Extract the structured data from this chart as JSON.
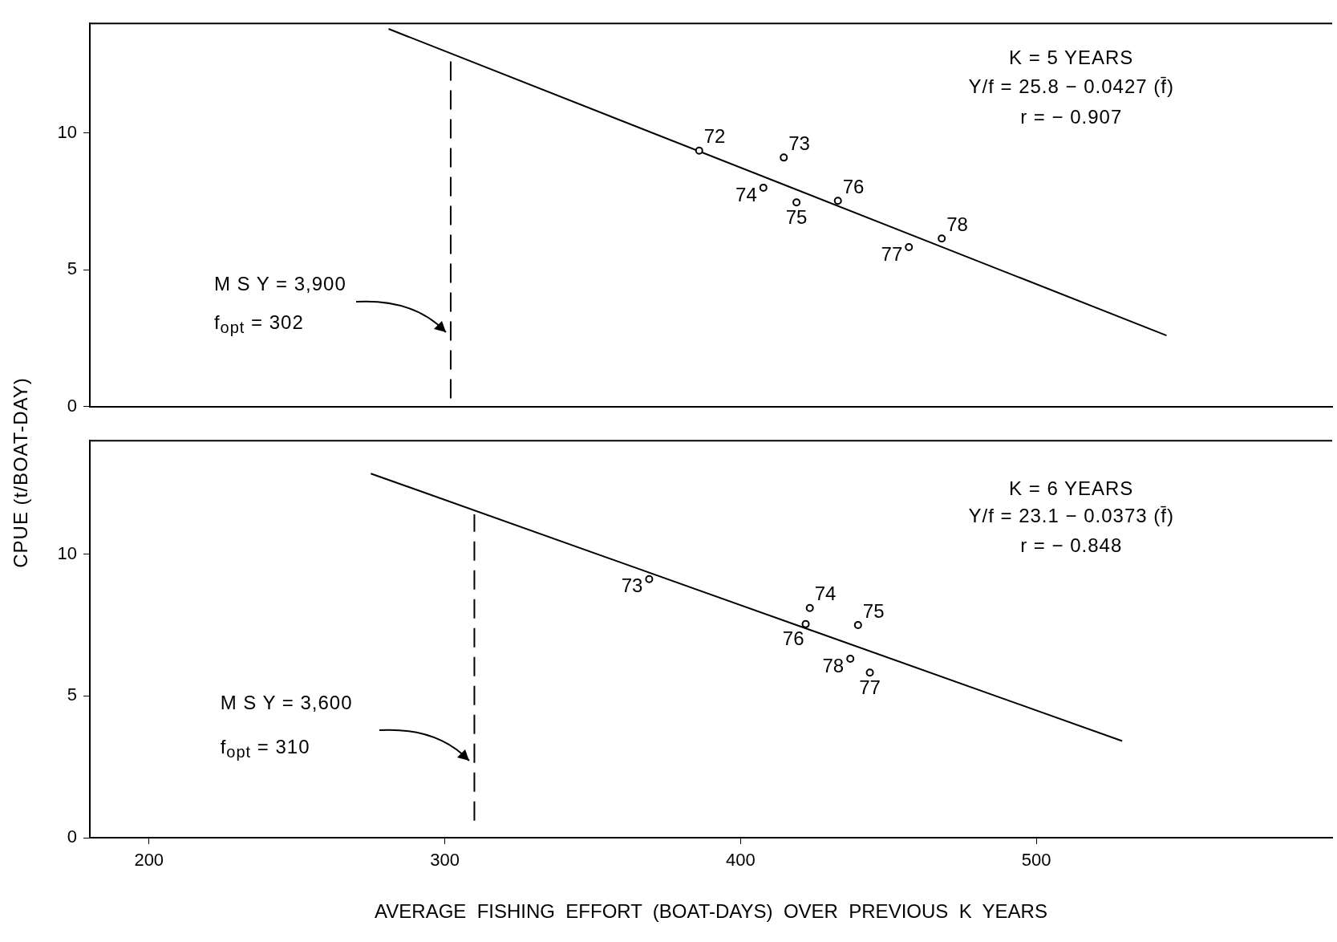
{
  "chart_data": [
    {
      "type": "scatter",
      "xlim": [
        180,
        600
      ],
      "ylim": [
        0,
        14
      ],
      "xticks": [
        200,
        300,
        400,
        500
      ],
      "yticks": [
        0,
        5,
        10
      ],
      "tick_labels": "y",
      "grid": false,
      "series": [
        {
          "type": "scatter",
          "marker": "circle",
          "color": "#000000",
          "x": [
            386,
            414.6,
            407.7,
            418.9,
            432.9,
            456.9,
            468
          ],
          "values": [
            9.35,
            9.1,
            8.0,
            7.46,
            7.52,
            5.83,
            6.14
          ]
        },
        {
          "type": "line",
          "color": "#000000",
          "x": [
            281,
            544
          ],
          "values": [
            13.8,
            2.6
          ]
        },
        {
          "type": "line",
          "color": "#000000",
          "line_style": "dashed",
          "x": [
            302,
            302
          ],
          "values": [
            0.3,
            12.7
          ]
        }
      ],
      "annotations": [
        "K = 5  YEARS",
        "Y/f = 25.8 − 0.0427  (f̄)",
        "r =  − 0.907",
        "M S Y = 3,900",
        "f$_{opt}$ = 302",
        {
          "text": "72",
          "x": 386,
          "y": 9.35
        },
        {
          "text": "73",
          "x": 414.6,
          "y": 9.1
        },
        {
          "text": "74",
          "x": 407.7,
          "y": 8.0
        },
        {
          "text": "75",
          "x": 418.9,
          "y": 7.46
        },
        {
          "text": "76",
          "x": 432.9,
          "y": 7.52
        },
        {
          "text": "77",
          "x": 456.9,
          "y": 5.83
        },
        {
          "text": "78",
          "x": 468,
          "y": 6.14
        }
      ]
    },
    {
      "type": "scatter",
      "xlim": [
        180,
        600
      ],
      "ylim": [
        0,
        14
      ],
      "xticks": [
        200,
        300,
        400,
        500
      ],
      "yticks": [
        0,
        5,
        10
      ],
      "grid": false,
      "xlabel": "AVERAGE  FISHING  EFFORT  (BOAT-DAYS)  OVER  PREVIOUS  K  YEARS",
      "ylabel": "CPUE  (t/BOAT-DAY)",
      "series": [
        {
          "type": "scatter",
          "marker": "circle",
          "color": "#000000",
          "x": [
            369.1,
            423.4,
            439.7,
            422,
            443.7,
            437.1
          ],
          "values": [
            9.12,
            8.1,
            7.5,
            7.53,
            5.82,
            6.31
          ]
        },
        {
          "type": "line",
          "color": "#000000",
          "x": [
            275,
            529
          ],
          "values": [
            12.84,
            3.41
          ]
        },
        {
          "type": "line",
          "color": "#000000",
          "line_style": "dashed",
          "x": [
            310,
            310
          ],
          "values": [
            0.6,
            11.4
          ]
        }
      ],
      "annotations": [
        "K = 6  YEARS",
        "Y/f = 23.1 − 0.0373 (f̄)",
        "r =  − 0.848",
        "M S Y  =  3,600",
        "f$_{opt}$ =  310",
        {
          "text": "73",
          "x": 369.1,
          "y": 9.12
        },
        {
          "text": "74",
          "x": 423.4,
          "y": 8.1
        },
        {
          "text": "75",
          "x": 439.7,
          "y": 7.5
        },
        {
          "text": "76",
          "x": 422,
          "y": 7.53
        },
        {
          "text": "77",
          "x": 443.7,
          "y": 5.82
        },
        {
          "text": "78",
          "x": 437.1,
          "y": 6.31
        }
      ]
    }
  ]
}
